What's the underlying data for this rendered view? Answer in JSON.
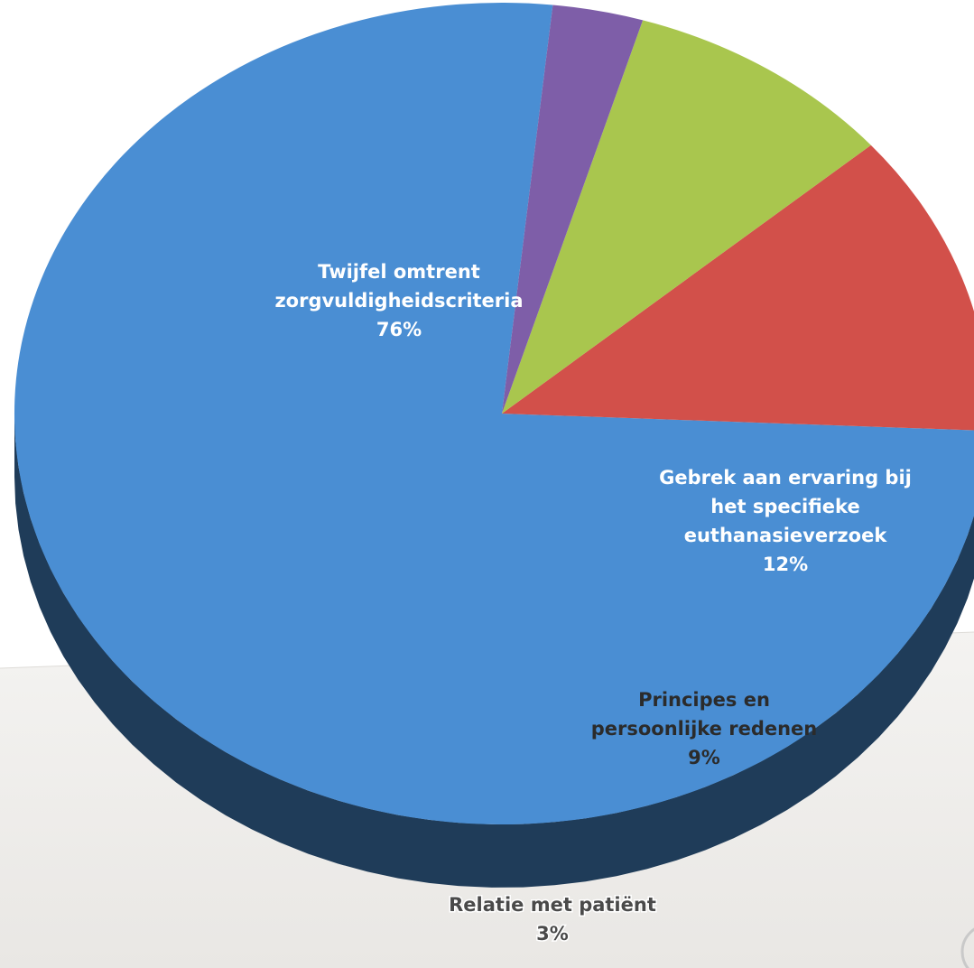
{
  "chart_data": {
    "type": "pie",
    "title": "",
    "slices": [
      {
        "label_lines": [
          "Twijfel omtrent",
          "zorgvuldigheidscriteria"
        ],
        "value_label": "76%",
        "value": 76,
        "color": "#4a8ed3"
      },
      {
        "label_lines": [
          "Gebrek aan ervaring bij",
          "het specifieke",
          "euthanasieverzoek"
        ],
        "value_label": "12%",
        "value": 12,
        "color": "#d2504a"
      },
      {
        "label_lines": [
          "Principes en",
          "persoonlijke redenen"
        ],
        "value_label": "9%",
        "value": 9,
        "color": "#a9c64e"
      },
      {
        "label_lines": [
          "Relatie met patiënt"
        ],
        "value_label": "3%",
        "value": 3,
        "color": "#7e5ea8"
      }
    ],
    "legend": "none",
    "style": "3d-tilted"
  }
}
